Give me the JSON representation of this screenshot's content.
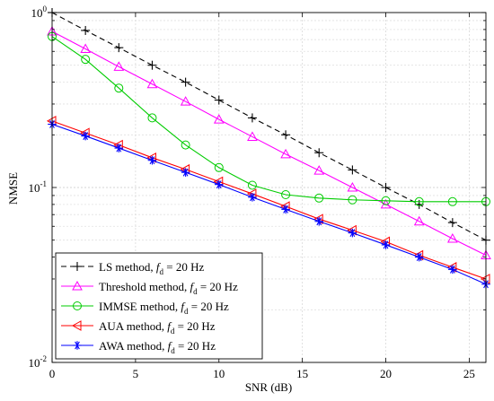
{
  "chart_data": {
    "type": "line",
    "xlabel": "SNR (dB)",
    "ylabel": "NMSE",
    "xlim": [
      0,
      26
    ],
    "ylim": [
      0.01,
      1
    ],
    "y_scale": "log",
    "grid": true,
    "legend_position": "bottom-left",
    "x_ticks": [
      0,
      5,
      10,
      15,
      20,
      25
    ],
    "x_tick_labels": [
      "0",
      "5",
      "10",
      "15",
      "20",
      "25"
    ],
    "y_ticks": [
      0.01,
      0.1,
      1
    ],
    "y_tick_labels": [
      {
        "base": "10",
        "exp": "-2"
      },
      {
        "base": "10",
        "exp": "-1"
      },
      {
        "base": "10",
        "exp": "0"
      }
    ],
    "x": [
      0,
      2,
      4,
      6,
      8,
      10,
      12,
      14,
      16,
      18,
      20,
      22,
      24,
      26
    ],
    "series": [
      {
        "name_main": "LS method, ",
        "name_sym": "f",
        "name_sub": "d",
        "name_tail": " = 20 Hz",
        "color": "#000000",
        "dash": "6,4",
        "marker": "plus",
        "values": [
          1.0,
          0.79,
          0.63,
          0.5,
          0.4,
          0.316,
          0.25,
          0.2,
          0.158,
          0.126,
          0.1,
          0.08,
          0.063,
          0.05
        ]
      },
      {
        "name_main": "Threshold method, ",
        "name_sym": "f",
        "name_sub": "d",
        "name_tail": " = 20 Hz",
        "color": "#ff00ff",
        "dash": "",
        "marker": "triangle-up",
        "values": [
          0.78,
          0.62,
          0.49,
          0.39,
          0.31,
          0.245,
          0.195,
          0.155,
          0.125,
          0.1,
          0.08,
          0.064,
          0.051,
          0.041
        ]
      },
      {
        "name_main": "IMMSE method, ",
        "name_sym": "f",
        "name_sub": "d",
        "name_tail": " = 20 Hz",
        "color": "#00cc00",
        "dash": "",
        "marker": "circle",
        "values": [
          0.73,
          0.54,
          0.37,
          0.25,
          0.175,
          0.13,
          0.103,
          0.091,
          0.087,
          0.085,
          0.084,
          0.083,
          0.083,
          0.083
        ]
      },
      {
        "name_main": "AUA method, ",
        "name_sym": "f",
        "name_sub": "d",
        "name_tail": " = 20 Hz",
        "color": "#ff0000",
        "dash": "",
        "marker": "triangle-left",
        "values": [
          0.24,
          0.205,
          0.175,
          0.148,
          0.127,
          0.108,
          0.092,
          0.078,
          0.066,
          0.057,
          0.049,
          0.041,
          0.035,
          0.03
        ]
      },
      {
        "name_main": "AWA method, ",
        "name_sym": "f",
        "name_sub": "d",
        "name_tail": " = 20 Hz",
        "color": "#0000ff",
        "dash": "",
        "marker": "asterisk",
        "values": [
          0.23,
          0.197,
          0.168,
          0.143,
          0.122,
          0.104,
          0.088,
          0.075,
          0.064,
          0.055,
          0.047,
          0.04,
          0.034,
          0.028
        ]
      }
    ]
  }
}
